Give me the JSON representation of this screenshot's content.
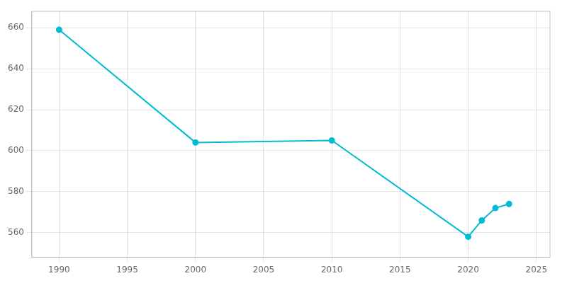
{
  "chart_data": {
    "type": "line",
    "x": [
      1990,
      2000,
      2010,
      2020,
      2021,
      2022,
      2023
    ],
    "values": [
      659,
      604,
      605,
      558,
      566,
      572,
      574
    ],
    "color": "#00BCD4",
    "marker": "circle",
    "xlim": [
      1988,
      2026
    ],
    "ylim": [
      548,
      668
    ],
    "xticks": [
      1990,
      1995,
      2000,
      2005,
      2010,
      2015,
      2020,
      2025
    ],
    "yticks": [
      560,
      580,
      600,
      620,
      640,
      660
    ],
    "grid": true
  }
}
